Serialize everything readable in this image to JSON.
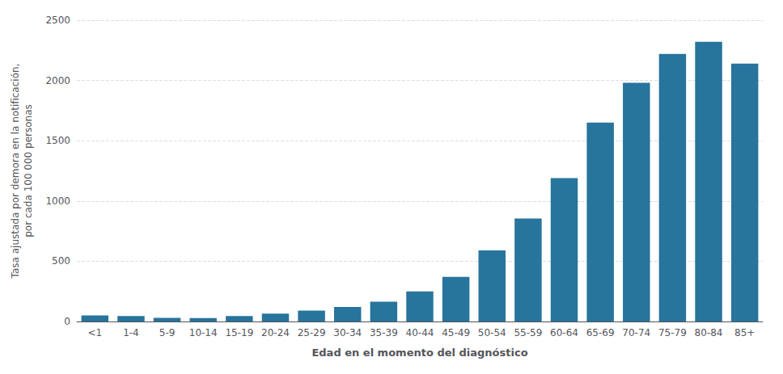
{
  "chart_data": {
    "type": "bar",
    "categories": [
      "<1",
      "1-4",
      "5-9",
      "10-14",
      "15-19",
      "20-24",
      "25-29",
      "30-34",
      "35-39",
      "40-44",
      "45-49",
      "50-54",
      "55-59",
      "60-64",
      "65-69",
      "70-74",
      "75-79",
      "80-84",
      "85+"
    ],
    "values": [
      50,
      45,
      30,
      28,
      45,
      65,
      90,
      120,
      165,
      250,
      370,
      590,
      855,
      1190,
      1650,
      1980,
      2220,
      2320,
      2140
    ],
    "color": "#27749c",
    "xlabel": "Edad en el momento del diagnóstico",
    "ylabel": "Tasa ajustada por demora en la notificación,\npor cada 100 000 personas",
    "ylim": [
      0,
      2500
    ],
    "yticks": [
      0,
      500,
      1000,
      1500,
      2000,
      2500
    ],
    "grid": true
  }
}
